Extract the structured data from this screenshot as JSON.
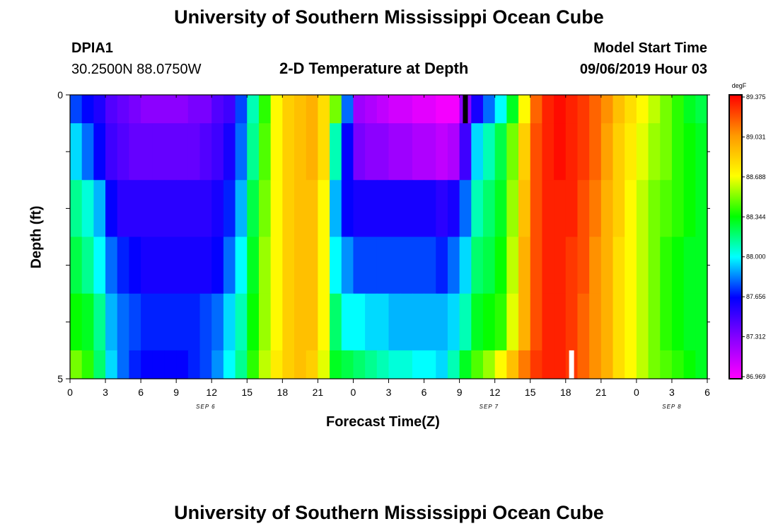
{
  "header": {
    "title": "University of Southern Mississippi Ocean Cube",
    "station_id": "DPIA1",
    "location": "30.2500N 88.0750W",
    "chart_title": "2-D Temperature at Depth",
    "start_label": "Model Start Time",
    "start_value": "09/06/2019 Hour 03"
  },
  "footer": {
    "title": "University of Southern Mississippi Ocean Cube"
  },
  "chart_data": {
    "type": "heatmap",
    "title": "2-D Temperature at Depth",
    "xlabel": "Forecast Time(Z)",
    "ylabel": "Depth (ft)",
    "x_ticks": [
      "0",
      "3",
      "6",
      "9",
      "12",
      "15",
      "18",
      "21",
      "0",
      "3",
      "6",
      "9",
      "12",
      "15",
      "18",
      "21",
      "0",
      "3",
      "6"
    ],
    "x_range_hours": [
      0,
      54
    ],
    "date_labels": [
      {
        "text": "SEP 6",
        "hour": 11.5
      },
      {
        "text": "SEP 7",
        "hour": 35.5
      },
      {
        "text": "SEP 8",
        "hour": 51
      }
    ],
    "y_ticks": [
      "0",
      "5"
    ],
    "y_range": [
      0,
      5
    ],
    "depth_levels": [
      0,
      0.5,
      1.5,
      2.5,
      3.5,
      4.5
    ],
    "colorbar": {
      "unit": "degF",
      "labels": [
        "89.375",
        "89.031",
        "88.688",
        "88.344",
        "88.000",
        "87.656",
        "87.312",
        "86.969"
      ],
      "min": 86.969,
      "max": 89.375,
      "colors": [
        "#ff00ff",
        "#8800ff",
        "#0000ff",
        "#00ffff",
        "#00ff00",
        "#ffff00",
        "#ff9900",
        "#ff0000"
      ]
    },
    "temperature_series": [
      {
        "name": "depth-0",
        "depth": 0,
        "hours": [
          0,
          1,
          2,
          3,
          4,
          5,
          6,
          7,
          8,
          9,
          10,
          11,
          12,
          13,
          14,
          15,
          16,
          17,
          18,
          19,
          20,
          21,
          22,
          23,
          24,
          25,
          26,
          27,
          28,
          29,
          30,
          31,
          32,
          33,
          34,
          35,
          36,
          37,
          38,
          39,
          40,
          41,
          42,
          43,
          44,
          45,
          46,
          47,
          48,
          49,
          50,
          51,
          52,
          53
        ],
        "values": [
          87.75,
          87.66,
          87.58,
          87.45,
          87.4,
          87.35,
          87.3,
          87.3,
          87.3,
          87.3,
          87.35,
          87.35,
          87.45,
          87.5,
          87.75,
          88.1,
          88.4,
          88.7,
          88.85,
          88.9,
          88.95,
          88.8,
          88.5,
          87.8,
          87.25,
          87.2,
          87.15,
          87.1,
          87.1,
          87.05,
          87.05,
          87.0,
          87.0,
          87.3,
          87.6,
          87.8,
          88.0,
          88.3,
          88.7,
          89.15,
          89.3,
          89.35,
          89.3,
          89.25,
          89.15,
          89.05,
          88.9,
          88.8,
          88.7,
          88.6,
          88.5,
          88.4,
          88.3,
          88.25
        ]
      },
      {
        "name": "depth-1",
        "depth": 0.5,
        "hours": [
          0,
          1,
          2,
          3,
          4,
          5,
          6,
          7,
          8,
          9,
          10,
          11,
          12,
          13,
          14,
          15,
          16,
          17,
          18,
          19,
          20,
          21,
          22,
          23,
          24,
          25,
          26,
          27,
          28,
          29,
          30,
          31,
          32,
          33,
          34,
          35,
          36,
          37,
          38,
          39,
          40,
          41,
          42,
          43,
          44,
          45,
          46,
          47,
          48,
          49,
          50,
          51,
          52,
          53
        ],
        "values": [
          87.95,
          87.8,
          87.65,
          87.5,
          87.45,
          87.4,
          87.4,
          87.4,
          87.4,
          87.4,
          87.4,
          87.45,
          87.5,
          87.6,
          87.8,
          88.15,
          88.45,
          88.7,
          88.85,
          88.9,
          88.95,
          88.8,
          88.1,
          87.65,
          87.35,
          87.3,
          87.3,
          87.25,
          87.25,
          87.2,
          87.2,
          87.15,
          87.2,
          87.5,
          87.95,
          88.1,
          88.25,
          88.5,
          88.85,
          89.2,
          89.3,
          89.35,
          89.3,
          89.25,
          89.15,
          89.0,
          88.85,
          88.75,
          88.65,
          88.55,
          88.5,
          88.4,
          88.35,
          88.3
        ]
      },
      {
        "name": "depth-2",
        "depth": 1.5,
        "hours": [
          0,
          1,
          2,
          3,
          4,
          5,
          6,
          7,
          8,
          9,
          10,
          11,
          12,
          13,
          14,
          15,
          16,
          17,
          18,
          19,
          20,
          21,
          22,
          23,
          24,
          25,
          26,
          27,
          28,
          29,
          30,
          31,
          32,
          33,
          34,
          35,
          36,
          37,
          38,
          39,
          40,
          41,
          42,
          43,
          44,
          45,
          46,
          47,
          48,
          49,
          50,
          51,
          52,
          53
        ],
        "values": [
          88.15,
          88.05,
          87.9,
          87.65,
          87.55,
          87.55,
          87.55,
          87.55,
          87.55,
          87.55,
          87.55,
          87.55,
          87.6,
          87.7,
          87.9,
          88.25,
          88.5,
          88.7,
          88.85,
          88.9,
          88.9,
          88.7,
          87.9,
          87.65,
          87.6,
          87.6,
          87.6,
          87.6,
          87.6,
          87.6,
          87.6,
          87.55,
          87.6,
          87.8,
          88.1,
          88.2,
          88.3,
          88.55,
          88.9,
          89.2,
          89.3,
          89.3,
          89.3,
          89.2,
          89.1,
          88.95,
          88.85,
          88.7,
          88.6,
          88.5,
          88.45,
          88.4,
          88.35,
          88.3
        ]
      },
      {
        "name": "depth-3",
        "depth": 2.5,
        "hours": [
          0,
          1,
          2,
          3,
          4,
          5,
          6,
          7,
          8,
          9,
          10,
          11,
          12,
          13,
          14,
          15,
          16,
          17,
          18,
          19,
          20,
          21,
          22,
          23,
          24,
          25,
          26,
          27,
          28,
          29,
          30,
          31,
          32,
          33,
          34,
          35,
          36,
          37,
          38,
          39,
          40,
          41,
          42,
          43,
          44,
          45,
          46,
          47,
          48,
          49,
          50,
          51,
          52,
          53
        ],
        "values": [
          88.25,
          88.15,
          88.0,
          87.8,
          87.7,
          87.65,
          87.6,
          87.6,
          87.6,
          87.6,
          87.6,
          87.6,
          87.65,
          87.8,
          88.0,
          88.3,
          88.55,
          88.7,
          88.85,
          88.9,
          88.9,
          88.7,
          88.0,
          87.85,
          87.75,
          87.75,
          87.75,
          87.75,
          87.75,
          87.75,
          87.75,
          87.7,
          87.8,
          87.95,
          88.2,
          88.25,
          88.35,
          88.6,
          88.95,
          89.2,
          89.3,
          89.3,
          89.25,
          89.2,
          89.05,
          88.95,
          88.8,
          88.7,
          88.6,
          88.5,
          88.4,
          88.35,
          88.3,
          88.3
        ]
      },
      {
        "name": "depth-4",
        "depth": 3.5,
        "hours": [
          0,
          1,
          2,
          3,
          4,
          5,
          6,
          7,
          8,
          9,
          10,
          11,
          12,
          13,
          14,
          15,
          16,
          17,
          18,
          19,
          20,
          21,
          22,
          23,
          24,
          25,
          26,
          27,
          28,
          29,
          30,
          31,
          32,
          33,
          34,
          35,
          36,
          37,
          38,
          39,
          40,
          41,
          42,
          43,
          44,
          45,
          46,
          47,
          48,
          49,
          50,
          51,
          52,
          53
        ],
        "values": [
          88.35,
          88.3,
          88.15,
          87.9,
          87.8,
          87.75,
          87.7,
          87.7,
          87.7,
          87.7,
          87.7,
          87.75,
          87.8,
          87.95,
          88.1,
          88.35,
          88.55,
          88.7,
          88.85,
          88.9,
          88.9,
          88.7,
          88.2,
          88.0,
          88.0,
          87.95,
          87.95,
          87.9,
          87.9,
          87.9,
          87.9,
          87.9,
          87.95,
          88.1,
          88.3,
          88.35,
          88.4,
          88.65,
          88.95,
          89.2,
          89.3,
          89.3,
          89.25,
          89.15,
          89.05,
          88.95,
          88.8,
          88.7,
          88.6,
          88.5,
          88.4,
          88.35,
          88.3,
          88.3
        ]
      },
      {
        "name": "depth-5",
        "depth": 4.5,
        "hours": [
          0,
          1,
          2,
          3,
          4,
          5,
          6,
          7,
          8,
          9,
          10,
          11,
          12,
          13,
          14,
          15,
          16,
          17,
          18,
          19,
          20,
          21,
          22,
          23,
          24,
          25,
          26,
          27,
          28,
          29,
          30,
          31,
          32,
          33,
          34,
          35,
          36,
          37,
          38,
          39,
          40,
          41,
          42,
          43,
          44,
          45,
          46,
          47,
          48,
          49,
          50,
          51,
          52,
          53
        ],
        "values": [
          88.5,
          88.4,
          88.2,
          87.95,
          87.8,
          87.7,
          87.65,
          87.65,
          87.65,
          87.65,
          87.7,
          87.75,
          87.85,
          88.0,
          88.15,
          88.4,
          88.6,
          88.75,
          88.85,
          88.9,
          88.85,
          88.65,
          88.3,
          88.25,
          88.2,
          88.15,
          88.1,
          88.05,
          88.05,
          88.0,
          88.0,
          87.95,
          88.1,
          88.3,
          88.45,
          88.55,
          88.7,
          88.9,
          89.1,
          89.25,
          89.3,
          89.3,
          89.25,
          89.15,
          89.05,
          88.95,
          88.8,
          88.7,
          88.6,
          88.5,
          88.45,
          88.4,
          88.35,
          88.3
        ]
      }
    ],
    "markers": [
      {
        "name": "black-marker",
        "color": "#000000",
        "hour": 33.5,
        "depth_from": 0,
        "depth_to": 0.5
      },
      {
        "name": "white-marker",
        "color": "#ffffff",
        "hour": 42.5,
        "depth_from": 4.5,
        "depth_to": 5
      }
    ]
  }
}
